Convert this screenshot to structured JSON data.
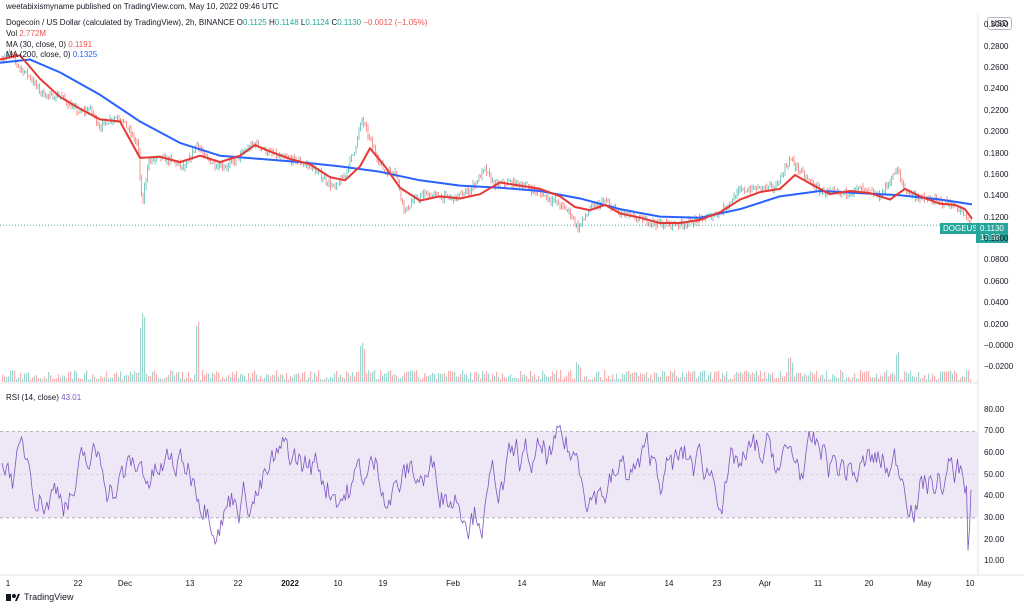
{
  "header": {
    "user": "weetabixismyname",
    "published": "published on TradingView.com, May 10, 2022 09:46 UTC",
    "symbol_title": "Dogecoin / US Dollar (calculated by TradingView), 2h, BINANCE",
    "ohlc": {
      "O": "0.1125",
      "H": "0.1148",
      "L": "0.1124",
      "C": "0.1130",
      "chg": "−0.0012 (−1.05%)"
    },
    "vol_label": "Vol",
    "vol_value": "2.772M",
    "ma30_label": "MA (30, close, 0)",
    "ma30_value": "0.1191",
    "ma200_label": "MA (200, close, 0)",
    "ma200_value": "0.1325",
    "rsi_label": "RSI (14, close)",
    "rsi_value": "43.01"
  },
  "currency": "USD",
  "price_tag": {
    "value": "0.1130",
    "countdown": "13:58",
    "symbol": "DOGEUSD"
  },
  "colors": {
    "up": "#26a69a",
    "down": "#ef5350",
    "ma30": "#e53935",
    "ma200": "#2962ff",
    "rsi": "#7e57c2",
    "rsi_band": "#ede7f6"
  },
  "brand": "TradingView",
  "chart_data": {
    "type": "line",
    "title": "Dogecoin / US Dollar, 2h, BINANCE",
    "price_axis": {
      "ticks": [
        "0.3000",
        "0.2800",
        "0.2600",
        "0.2400",
        "0.2200",
        "0.2000",
        "0.1800",
        "0.1600",
        "0.1400",
        "0.1200",
        "0.1000",
        "0.0800",
        "0.0600",
        "0.0400",
        "0.0200",
        "−0.0000",
        "−0.0200"
      ],
      "range": [
        -0.03,
        0.305
      ]
    },
    "rsi_axis": {
      "ticks": [
        "80.00",
        "70.00",
        "60.00",
        "50.00",
        "40.00",
        "30.00",
        "20.00",
        "10.00"
      ],
      "range": [
        5,
        90
      ],
      "band": [
        30,
        70
      ]
    },
    "x_labels": [
      "1",
      "22",
      "Dec",
      "13",
      "22",
      "2022",
      "10",
      "19",
      "Feb",
      "14",
      "Mar",
      "14",
      "23",
      "Apr",
      "11",
      "20",
      "May",
      "10"
    ],
    "x_labels_bold": [
      "2022"
    ],
    "price_series": [
      {
        "name": "price",
        "points": [
          [
            0,
            0.268
          ],
          [
            10,
            0.274
          ],
          [
            20,
            0.26
          ],
          [
            30,
            0.252
          ],
          [
            40,
            0.238
          ],
          [
            50,
            0.233
          ],
          [
            60,
            0.235
          ],
          [
            70,
            0.225
          ],
          [
            80,
            0.218
          ],
          [
            90,
            0.222
          ],
          [
            100,
            0.205
          ],
          [
            110,
            0.212
          ],
          [
            120,
            0.215
          ],
          [
            130,
            0.2
          ],
          [
            138,
            0.188
          ],
          [
            142,
            0.13
          ],
          [
            148,
            0.172
          ],
          [
            160,
            0.176
          ],
          [
            175,
            0.172
          ],
          [
            185,
            0.165
          ],
          [
            197,
            0.19
          ],
          [
            205,
            0.176
          ],
          [
            215,
            0.17
          ],
          [
            228,
            0.168
          ],
          [
            240,
            0.178
          ],
          [
            255,
            0.19
          ],
          [
            265,
            0.183
          ],
          [
            280,
            0.176
          ],
          [
            295,
            0.174
          ],
          [
            310,
            0.168
          ],
          [
            320,
            0.16
          ],
          [
            335,
            0.147
          ],
          [
            345,
            0.16
          ],
          [
            355,
            0.185
          ],
          [
            362,
            0.212
          ],
          [
            372,
            0.188
          ],
          [
            385,
            0.162
          ],
          [
            395,
            0.165
          ],
          [
            405,
            0.125
          ],
          [
            412,
            0.135
          ],
          [
            425,
            0.142
          ],
          [
            440,
            0.14
          ],
          [
            455,
            0.138
          ],
          [
            470,
            0.146
          ],
          [
            485,
            0.165
          ],
          [
            495,
            0.15
          ],
          [
            510,
            0.153
          ],
          [
            525,
            0.15
          ],
          [
            540,
            0.143
          ],
          [
            555,
            0.135
          ],
          [
            570,
            0.125
          ],
          [
            578,
            0.11
          ],
          [
            590,
            0.128
          ],
          [
            605,
            0.135
          ],
          [
            620,
            0.124
          ],
          [
            640,
            0.119
          ],
          [
            660,
            0.114
          ],
          [
            680,
            0.114
          ],
          [
            700,
            0.118
          ],
          [
            720,
            0.125
          ],
          [
            740,
            0.145
          ],
          [
            760,
            0.148
          ],
          [
            775,
            0.148
          ],
          [
            790,
            0.175
          ],
          [
            805,
            0.158
          ],
          [
            820,
            0.145
          ],
          [
            840,
            0.142
          ],
          [
            860,
            0.147
          ],
          [
            880,
            0.14
          ],
          [
            897,
            0.165
          ],
          [
            905,
            0.146
          ],
          [
            920,
            0.138
          ],
          [
            935,
            0.136
          ],
          [
            950,
            0.133
          ],
          [
            960,
            0.128
          ],
          [
            967,
            0.118
          ],
          [
            972,
            0.113
          ]
        ]
      },
      {
        "name": "MA (30, close, 0)",
        "points": [
          [
            0,
            0.268
          ],
          [
            20,
            0.272
          ],
          [
            40,
            0.25
          ],
          [
            60,
            0.233
          ],
          [
            80,
            0.222
          ],
          [
            100,
            0.212
          ],
          [
            120,
            0.21
          ],
          [
            140,
            0.176
          ],
          [
            160,
            0.177
          ],
          [
            180,
            0.172
          ],
          [
            200,
            0.178
          ],
          [
            220,
            0.172
          ],
          [
            240,
            0.178
          ],
          [
            255,
            0.188
          ],
          [
            270,
            0.182
          ],
          [
            290,
            0.175
          ],
          [
            310,
            0.17
          ],
          [
            330,
            0.158
          ],
          [
            345,
            0.155
          ],
          [
            360,
            0.168
          ],
          [
            370,
            0.185
          ],
          [
            385,
            0.168
          ],
          [
            400,
            0.148
          ],
          [
            420,
            0.136
          ],
          [
            440,
            0.14
          ],
          [
            460,
            0.138
          ],
          [
            480,
            0.142
          ],
          [
            500,
            0.153
          ],
          [
            520,
            0.15
          ],
          [
            540,
            0.147
          ],
          [
            560,
            0.14
          ],
          [
            575,
            0.13
          ],
          [
            590,
            0.127
          ],
          [
            605,
            0.132
          ],
          [
            620,
            0.124
          ],
          [
            640,
            0.12
          ],
          [
            660,
            0.115
          ],
          [
            680,
            0.115
          ],
          [
            700,
            0.118
          ],
          [
            720,
            0.125
          ],
          [
            740,
            0.137
          ],
          [
            760,
            0.144
          ],
          [
            780,
            0.147
          ],
          [
            795,
            0.16
          ],
          [
            810,
            0.152
          ],
          [
            830,
            0.142
          ],
          [
            850,
            0.145
          ],
          [
            870,
            0.143
          ],
          [
            890,
            0.137
          ],
          [
            905,
            0.147
          ],
          [
            920,
            0.14
          ],
          [
            940,
            0.133
          ],
          [
            955,
            0.132
          ],
          [
            965,
            0.128
          ],
          [
            972,
            0.119
          ]
        ]
      },
      {
        "name": "MA (200, close, 0)",
        "points": [
          [
            0,
            0.265
          ],
          [
            30,
            0.268
          ],
          [
            60,
            0.256
          ],
          [
            100,
            0.235
          ],
          [
            140,
            0.21
          ],
          [
            180,
            0.19
          ],
          [
            220,
            0.178
          ],
          [
            260,
            0.175
          ],
          [
            300,
            0.172
          ],
          [
            340,
            0.168
          ],
          [
            380,
            0.163
          ],
          [
            420,
            0.155
          ],
          [
            460,
            0.15
          ],
          [
            500,
            0.148
          ],
          [
            540,
            0.145
          ],
          [
            580,
            0.138
          ],
          [
            620,
            0.128
          ],
          [
            660,
            0.121
          ],
          [
            700,
            0.12
          ],
          [
            740,
            0.128
          ],
          [
            780,
            0.14
          ],
          [
            820,
            0.145
          ],
          [
            860,
            0.143
          ],
          [
            900,
            0.141
          ],
          [
            940,
            0.137
          ],
          [
            972,
            0.1325
          ]
        ]
      }
    ],
    "ma_labels": [
      "MA (30, close, 0)",
      "MA (200, close, 0)"
    ]
  }
}
